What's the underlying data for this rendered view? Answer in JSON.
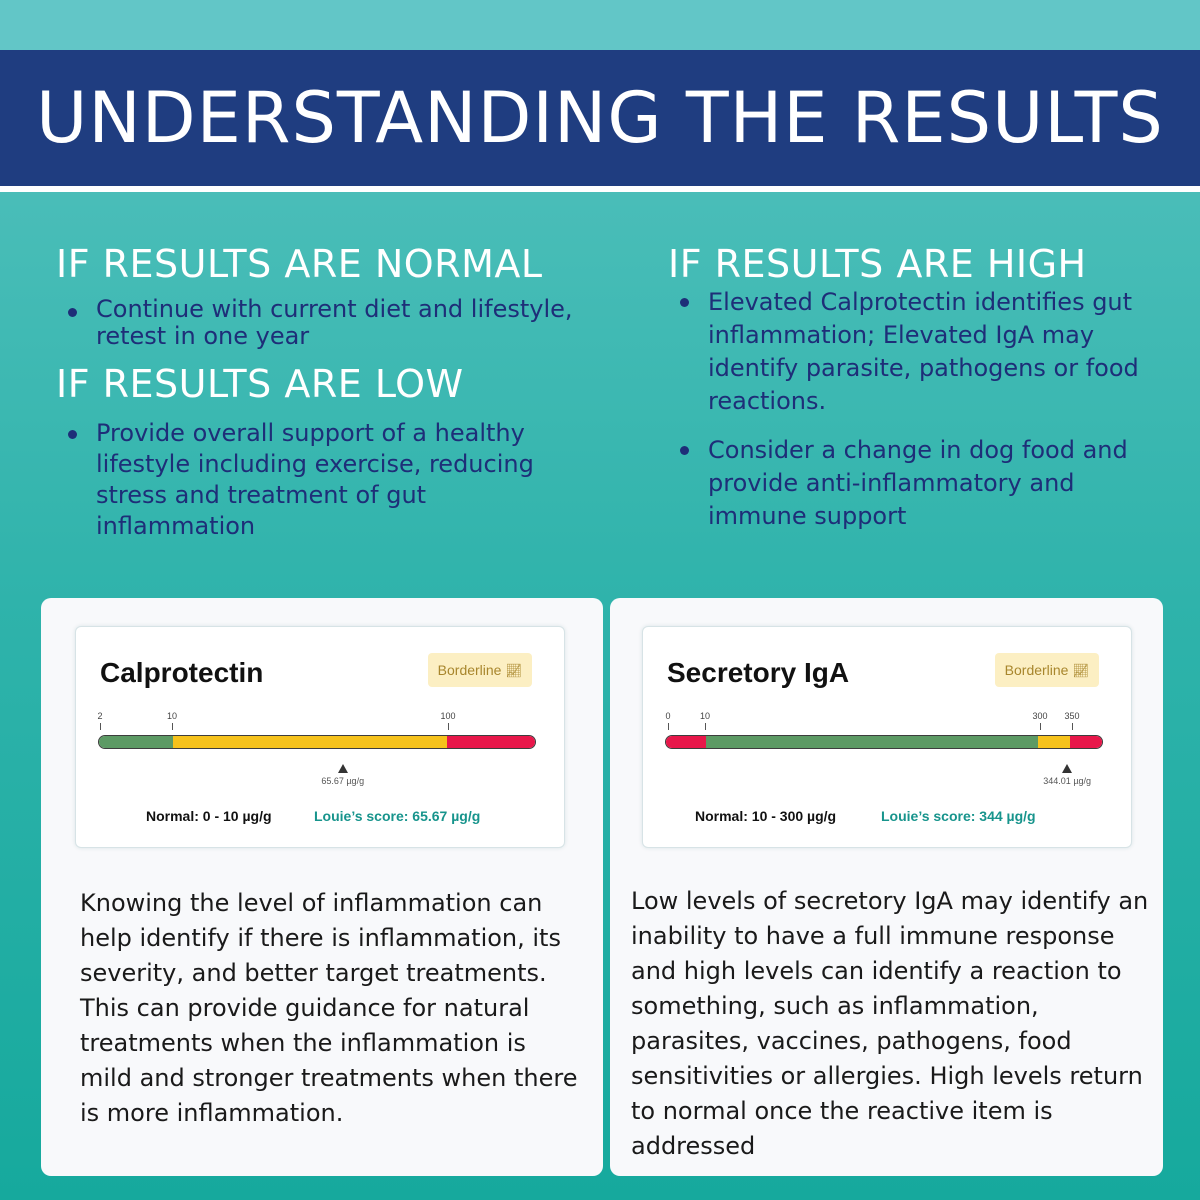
{
  "header": {
    "title": "UNDERSTANDING THE RESULTS"
  },
  "normal": {
    "heading": "IF RESULTS ARE NORMAL",
    "bullets": [
      "Continue with current diet and lifestyle, retest in one year"
    ]
  },
  "low": {
    "heading": "IF RESULTS ARE LOW",
    "bullets": [
      "Provide overall support of a healthy lifestyle including exercise, reducing stress and treatment of gut inflammation"
    ]
  },
  "high": {
    "heading": "IF RESULTS ARE HIGH",
    "bullets": [
      "Elevated Calprotectin identifies gut inflammation; Elevated IgA may identify parasite, pathogens or food reactions.",
      "Consider a change in dog food and provide anti-inflammatory and immune support"
    ]
  },
  "calprotectin": {
    "title": "Calprotectin",
    "badge": "Borderline",
    "badge_icon": "trend-chart-icon",
    "ticks": [
      "2",
      "10",
      "100"
    ],
    "segments": [
      {
        "from": 2,
        "to": 10,
        "color": "#5c9a64"
      },
      {
        "from": 10,
        "to": 100,
        "color": "#f6c21c"
      },
      {
        "from": 100,
        "to": 130,
        "color": "#e8174a"
      }
    ],
    "scale_domain": [
      2,
      10,
      100,
      130
    ],
    "marker_value": 65.67,
    "marker_label": "65.67 µg/g",
    "normal_label": "Normal: 0 - 10 µg/g",
    "score_label": "Louie’s score: 65.67 µg/g",
    "description": "Knowing the level of inflammation can help identify if there is inflammation, its severity, and better target treatments. This can provide guidance for natural treatments when the inflammation is mild and stronger treatments when there is more inflammation."
  },
  "iga": {
    "title": "Secretory IgA",
    "badge": "Borderline",
    "badge_icon": "trend-chart-icon",
    "ticks": [
      "0",
      "10",
      "300",
      "350"
    ],
    "segments": [
      {
        "from": 0,
        "to": 10,
        "color": "#e8174a"
      },
      {
        "from": 10,
        "to": 300,
        "color": "#5c9a64"
      },
      {
        "from": 300,
        "to": 350,
        "color": "#f6c21c"
      },
      {
        "from": 350,
        "to": 380,
        "color": "#e8174a"
      }
    ],
    "marker_value": 344.01,
    "marker_label": "344.01 µg/g",
    "normal_label": "Normal: 10 - 300 µg/g",
    "score_label": "Louie’s score: 344 µg/g",
    "description": "Low levels of secretory IgA may identify an inability to have a full immune response and high levels can identify a reaction to something, such as inflammation, parasites, vaccines, pathogens, food sensitivities or allergies. High levels return to normal once the reactive item is addressed"
  }
}
